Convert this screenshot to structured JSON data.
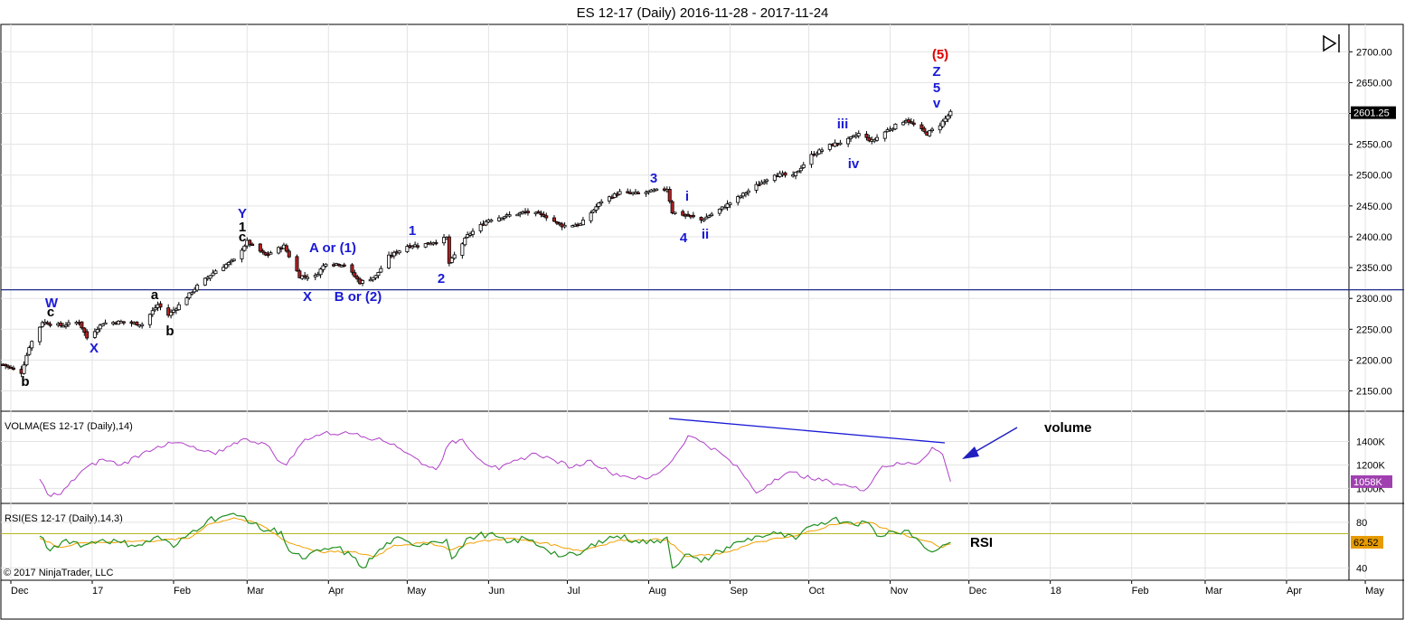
{
  "window": {
    "title": "ES 12-17 (Daily)  2016-11-28 - 2017-11-24",
    "copyright": "© 2017 NinjaTrader, LLC"
  },
  "colors": {
    "candle_up": "#ffffff",
    "candle_down": "#b22222",
    "wick": "#000000",
    "hline": "#1f2a8a",
    "volma": "#b040c8",
    "rsi_main": "#1f8f1f",
    "rsi_signal": "#f0a000",
    "rsi_level": "#b5b520",
    "wave_blue": "#1a1ad6",
    "wave_black": "#000000",
    "wave_red": "#e00000",
    "annotation_line": "#2020c0",
    "price_badge": "#000000",
    "volma_badge": "#a040b0",
    "rsi_badge": "#e79b00"
  },
  "icons": {
    "scroll_end": "skip-to-end-icon"
  },
  "chart_data": [
    {
      "type": "candlestick",
      "title": "ES 12-17 (Daily)  2016-11-28 - 2017-11-24",
      "x_tick_labels": [
        "Dec",
        "17",
        "Feb",
        "Mar",
        "Apr",
        "May",
        "Jun",
        "Jul",
        "Aug",
        "Sep",
        "Oct",
        "Nov",
        "Dec",
        "18",
        "Feb",
        "Mar",
        "Apr",
        "May"
      ],
      "y_tick_labels": [
        "2150.00",
        "2200.00",
        "2250.00",
        "2300.00",
        "2350.00",
        "2400.00",
        "2450.00",
        "2500.00",
        "2550.00",
        "2600.00",
        "2650.00",
        "2700.00"
      ],
      "ylim": [
        2120,
        2740
      ],
      "last_price_label": "2601.25",
      "horizontal_line": 2314,
      "close_path": [
        [
          "2016-11-28",
          2193
        ],
        [
          "2016-12-05",
          2180
        ],
        [
          "2016-12-08",
          2222
        ],
        [
          "2016-12-13",
          2262
        ],
        [
          "2016-12-20",
          2256
        ],
        [
          "2016-12-27",
          2262
        ],
        [
          "2016-12-30",
          2236
        ],
        [
          "2017-01-05",
          2260
        ],
        [
          "2017-01-12",
          2262
        ],
        [
          "2017-01-20",
          2258
        ],
        [
          "2017-01-26",
          2290
        ],
        [
          "2017-01-30",
          2273
        ],
        [
          "2017-02-03",
          2289
        ],
        [
          "2017-02-10",
          2320
        ],
        [
          "2017-02-17",
          2345
        ],
        [
          "2017-02-24",
          2362
        ],
        [
          "2017-03-01",
          2392
        ],
        [
          "2017-03-08",
          2370
        ],
        [
          "2017-03-15",
          2385
        ],
        [
          "2017-03-21",
          2336
        ],
        [
          "2017-03-27",
          2336
        ],
        [
          "2017-03-31",
          2358
        ],
        [
          "2017-04-07",
          2355
        ],
        [
          "2017-04-13",
          2326
        ],
        [
          "2017-04-19",
          2336
        ],
        [
          "2017-04-24",
          2368
        ],
        [
          "2017-05-01",
          2385
        ],
        [
          "2017-05-08",
          2388
        ],
        [
          "2017-05-16",
          2398
        ],
        [
          "2017-05-17",
          2357
        ],
        [
          "2017-05-24",
          2402
        ],
        [
          "2017-06-01",
          2428
        ],
        [
          "2017-06-09",
          2435
        ],
        [
          "2017-06-15",
          2440
        ],
        [
          "2017-06-22",
          2435
        ],
        [
          "2017-06-29",
          2418
        ],
        [
          "2017-07-06",
          2420
        ],
        [
          "2017-07-14",
          2458
        ],
        [
          "2017-07-21",
          2472
        ],
        [
          "2017-07-28",
          2470
        ],
        [
          "2017-08-08",
          2478
        ],
        [
          "2017-08-10",
          2440
        ],
        [
          "2017-08-17",
          2433
        ],
        [
          "2017-08-21",
          2427
        ],
        [
          "2017-08-28",
          2444
        ],
        [
          "2017-09-05",
          2466
        ],
        [
          "2017-09-11",
          2483
        ],
        [
          "2017-09-18",
          2502
        ],
        [
          "2017-09-25",
          2498
        ],
        [
          "2017-10-02",
          2532
        ],
        [
          "2017-10-09",
          2548
        ],
        [
          "2017-10-16",
          2557
        ],
        [
          "2017-10-20",
          2567
        ],
        [
          "2017-10-25",
          2555
        ],
        [
          "2017-10-31",
          2573
        ],
        [
          "2017-11-07",
          2590
        ],
        [
          "2017-11-15",
          2567
        ],
        [
          "2017-11-20",
          2582
        ],
        [
          "2017-11-24",
          2601
        ]
      ],
      "wave_labels": [
        {
          "text": "b",
          "color": "black"
        },
        {
          "text": "W",
          "color": "blue"
        },
        {
          "text": "c",
          "color": "black"
        },
        {
          "text": "X",
          "color": "blue"
        },
        {
          "text": "a",
          "color": "black"
        },
        {
          "text": "b",
          "color": "black"
        },
        {
          "text": "Y",
          "color": "blue"
        },
        {
          "text": "1",
          "color": "black"
        },
        {
          "text": "c",
          "color": "black"
        },
        {
          "text": "A or (1)",
          "color": "blue"
        },
        {
          "text": "X",
          "color": "blue"
        },
        {
          "text": "B or (2)",
          "color": "blue"
        },
        {
          "text": "1",
          "color": "blue"
        },
        {
          "text": "2",
          "color": "blue"
        },
        {
          "text": "3",
          "color": "blue"
        },
        {
          "text": "4",
          "color": "blue"
        },
        {
          "text": "i",
          "color": "blue"
        },
        {
          "text": "ii",
          "color": "blue"
        },
        {
          "text": "iii",
          "color": "blue"
        },
        {
          "text": "iv",
          "color": "blue"
        },
        {
          "text": "v",
          "color": "blue"
        },
        {
          "text": "5",
          "color": "blue"
        },
        {
          "text": "Z",
          "color": "blue"
        },
        {
          "text": "(5)",
          "color": "red"
        }
      ]
    },
    {
      "type": "line",
      "title": "VOLMA(ES 12-17 (Daily),14)",
      "y_tick_labels": [
        "1000K",
        "1200K",
        "1400K"
      ],
      "ylim": [
        880000,
        1620000
      ],
      "last_value_label": "1058K",
      "annotation": "volume",
      "series": [
        {
          "values": [
            [
              "2016-12-12",
              1080000
            ],
            [
              "2016-12-15",
              950000
            ],
            [
              "2016-12-20",
              950000
            ],
            [
              "2016-12-28",
              1150000
            ],
            [
              "2017-01-05",
              1250000
            ],
            [
              "2017-01-12",
              1200000
            ],
            [
              "2017-01-20",
              1300000
            ],
            [
              "2017-01-26",
              1360000
            ],
            [
              "2017-02-03",
              1390000
            ],
            [
              "2017-02-10",
              1330000
            ],
            [
              "2017-02-17",
              1290000
            ],
            [
              "2017-02-24",
              1390000
            ],
            [
              "2017-03-01",
              1420000
            ],
            [
              "2017-03-08",
              1380000
            ],
            [
              "2017-03-14",
              1220000
            ],
            [
              "2017-03-16",
              1200000
            ],
            [
              "2017-03-23",
              1420000
            ],
            [
              "2017-03-30",
              1470000
            ],
            [
              "2017-04-06",
              1470000
            ],
            [
              "2017-04-12",
              1470000
            ],
            [
              "2017-04-19",
              1420000
            ],
            [
              "2017-04-26",
              1380000
            ],
            [
              "2017-05-01",
              1300000
            ],
            [
              "2017-05-08",
              1200000
            ],
            [
              "2017-05-12",
              1160000
            ],
            [
              "2017-05-17",
              1380000
            ],
            [
              "2017-05-22",
              1420000
            ],
            [
              "2017-05-29",
              1240000
            ],
            [
              "2017-06-05",
              1160000
            ],
            [
              "2017-06-12",
              1240000
            ],
            [
              "2017-06-19",
              1300000
            ],
            [
              "2017-06-26",
              1240000
            ],
            [
              "2017-07-03",
              1180000
            ],
            [
              "2017-07-10",
              1240000
            ],
            [
              "2017-07-17",
              1140000
            ],
            [
              "2017-07-24",
              1100000
            ],
            [
              "2017-07-31",
              1080000
            ],
            [
              "2017-08-04",
              1120000
            ],
            [
              "2017-08-10",
              1240000
            ],
            [
              "2017-08-16",
              1450000
            ],
            [
              "2017-08-22",
              1390000
            ],
            [
              "2017-08-29",
              1290000
            ],
            [
              "2017-09-05",
              1150000
            ],
            [
              "2017-09-11",
              960000
            ],
            [
              "2017-09-18",
              1080000
            ],
            [
              "2017-09-25",
              1140000
            ],
            [
              "2017-10-02",
              1080000
            ],
            [
              "2017-10-09",
              1060000
            ],
            [
              "2017-10-16",
              1020000
            ],
            [
              "2017-10-22",
              980000
            ],
            [
              "2017-10-29",
              1190000
            ],
            [
              "2017-11-05",
              1210000
            ],
            [
              "2017-11-12",
              1220000
            ],
            [
              "2017-11-17",
              1350000
            ],
            [
              "2017-11-21",
              1290000
            ],
            [
              "2017-11-24",
              1058000
            ]
          ]
        }
      ]
    },
    {
      "type": "line",
      "title": "RSI(ES 12-17 (Daily),14,3)",
      "y_tick_labels": [
        "40",
        "80"
      ],
      "ylim": [
        30,
        95
      ],
      "level_line": 70,
      "last_value_label": "62.52",
      "annotation": "RSI",
      "series": [
        {
          "values": [
            [
              "2016-12-12",
              68
            ],
            [
              "2016-12-16",
              55
            ],
            [
              "2016-12-22",
              65
            ],
            [
              "2016-12-29",
              60
            ],
            [
              "2017-01-05",
              65
            ],
            [
              "2017-01-12",
              62
            ],
            [
              "2017-01-20",
              60
            ],
            [
              "2017-01-26",
              68
            ],
            [
              "2017-02-01",
              58
            ],
            [
              "2017-02-07",
              70
            ],
            [
              "2017-02-14",
              82
            ],
            [
              "2017-02-21",
              86
            ],
            [
              "2017-02-28",
              85
            ],
            [
              "2017-03-06",
              74
            ],
            [
              "2017-03-14",
              72
            ],
            [
              "2017-03-17",
              55
            ],
            [
              "2017-03-22",
              48
            ],
            [
              "2017-03-29",
              55
            ],
            [
              "2017-04-04",
              58
            ],
            [
              "2017-04-10",
              50
            ],
            [
              "2017-04-14",
              40
            ],
            [
              "2017-04-19",
              52
            ],
            [
              "2017-04-26",
              66
            ],
            [
              "2017-05-03",
              60
            ],
            [
              "2017-05-10",
              63
            ],
            [
              "2017-05-16",
              65
            ],
            [
              "2017-05-18",
              48
            ],
            [
              "2017-05-25",
              67
            ],
            [
              "2017-06-01",
              70
            ],
            [
              "2017-06-08",
              62
            ],
            [
              "2017-06-15",
              66
            ],
            [
              "2017-06-22",
              58
            ],
            [
              "2017-06-29",
              50
            ],
            [
              "2017-07-06",
              52
            ],
            [
              "2017-07-13",
              64
            ],
            [
              "2017-07-20",
              68
            ],
            [
              "2017-07-27",
              64
            ],
            [
              "2017-08-03",
              62
            ],
            [
              "2017-08-08",
              67
            ],
            [
              "2017-08-10",
              40
            ],
            [
              "2017-08-15",
              52
            ],
            [
              "2017-08-21",
              45
            ],
            [
              "2017-08-28",
              55
            ],
            [
              "2017-09-05",
              63
            ],
            [
              "2017-09-12",
              68
            ],
            [
              "2017-09-19",
              70
            ],
            [
              "2017-09-26",
              65
            ],
            [
              "2017-10-03",
              78
            ],
            [
              "2017-10-10",
              83
            ],
            [
              "2017-10-17",
              80
            ],
            [
              "2017-10-24",
              79
            ],
            [
              "2017-10-27",
              68
            ],
            [
              "2017-11-02",
              72
            ],
            [
              "2017-11-08",
              73
            ],
            [
              "2017-11-14",
              58
            ],
            [
              "2017-11-17",
              54
            ],
            [
              "2017-11-21",
              60
            ],
            [
              "2017-11-24",
              62.52
            ]
          ]
        },
        {
          "values": [
            [
              "2016-12-12",
              66
            ],
            [
              "2016-12-20",
              58
            ],
            [
              "2016-12-29",
              62
            ],
            [
              "2017-01-12",
              63
            ],
            [
              "2017-01-26",
              64
            ],
            [
              "2017-02-07",
              66
            ],
            [
              "2017-02-14",
              78
            ],
            [
              "2017-02-24",
              84
            ],
            [
              "2017-03-06",
              78
            ],
            [
              "2017-03-17",
              62
            ],
            [
              "2017-03-29",
              54
            ],
            [
              "2017-04-10",
              54
            ],
            [
              "2017-04-19",
              50
            ],
            [
              "2017-04-26",
              60
            ],
            [
              "2017-05-10",
              62
            ],
            [
              "2017-05-18",
              56
            ],
            [
              "2017-05-25",
              62
            ],
            [
              "2017-06-08",
              66
            ],
            [
              "2017-06-22",
              62
            ],
            [
              "2017-07-06",
              55
            ],
            [
              "2017-07-20",
              64
            ],
            [
              "2017-08-08",
              65
            ],
            [
              "2017-08-15",
              50
            ],
            [
              "2017-08-28",
              52
            ],
            [
              "2017-09-12",
              63
            ],
            [
              "2017-09-26",
              68
            ],
            [
              "2017-10-10",
              78
            ],
            [
              "2017-10-24",
              80
            ],
            [
              "2017-11-02",
              72
            ],
            [
              "2017-11-14",
              64
            ],
            [
              "2017-11-21",
              58
            ],
            [
              "2017-11-24",
              61
            ]
          ]
        }
      ]
    }
  ]
}
